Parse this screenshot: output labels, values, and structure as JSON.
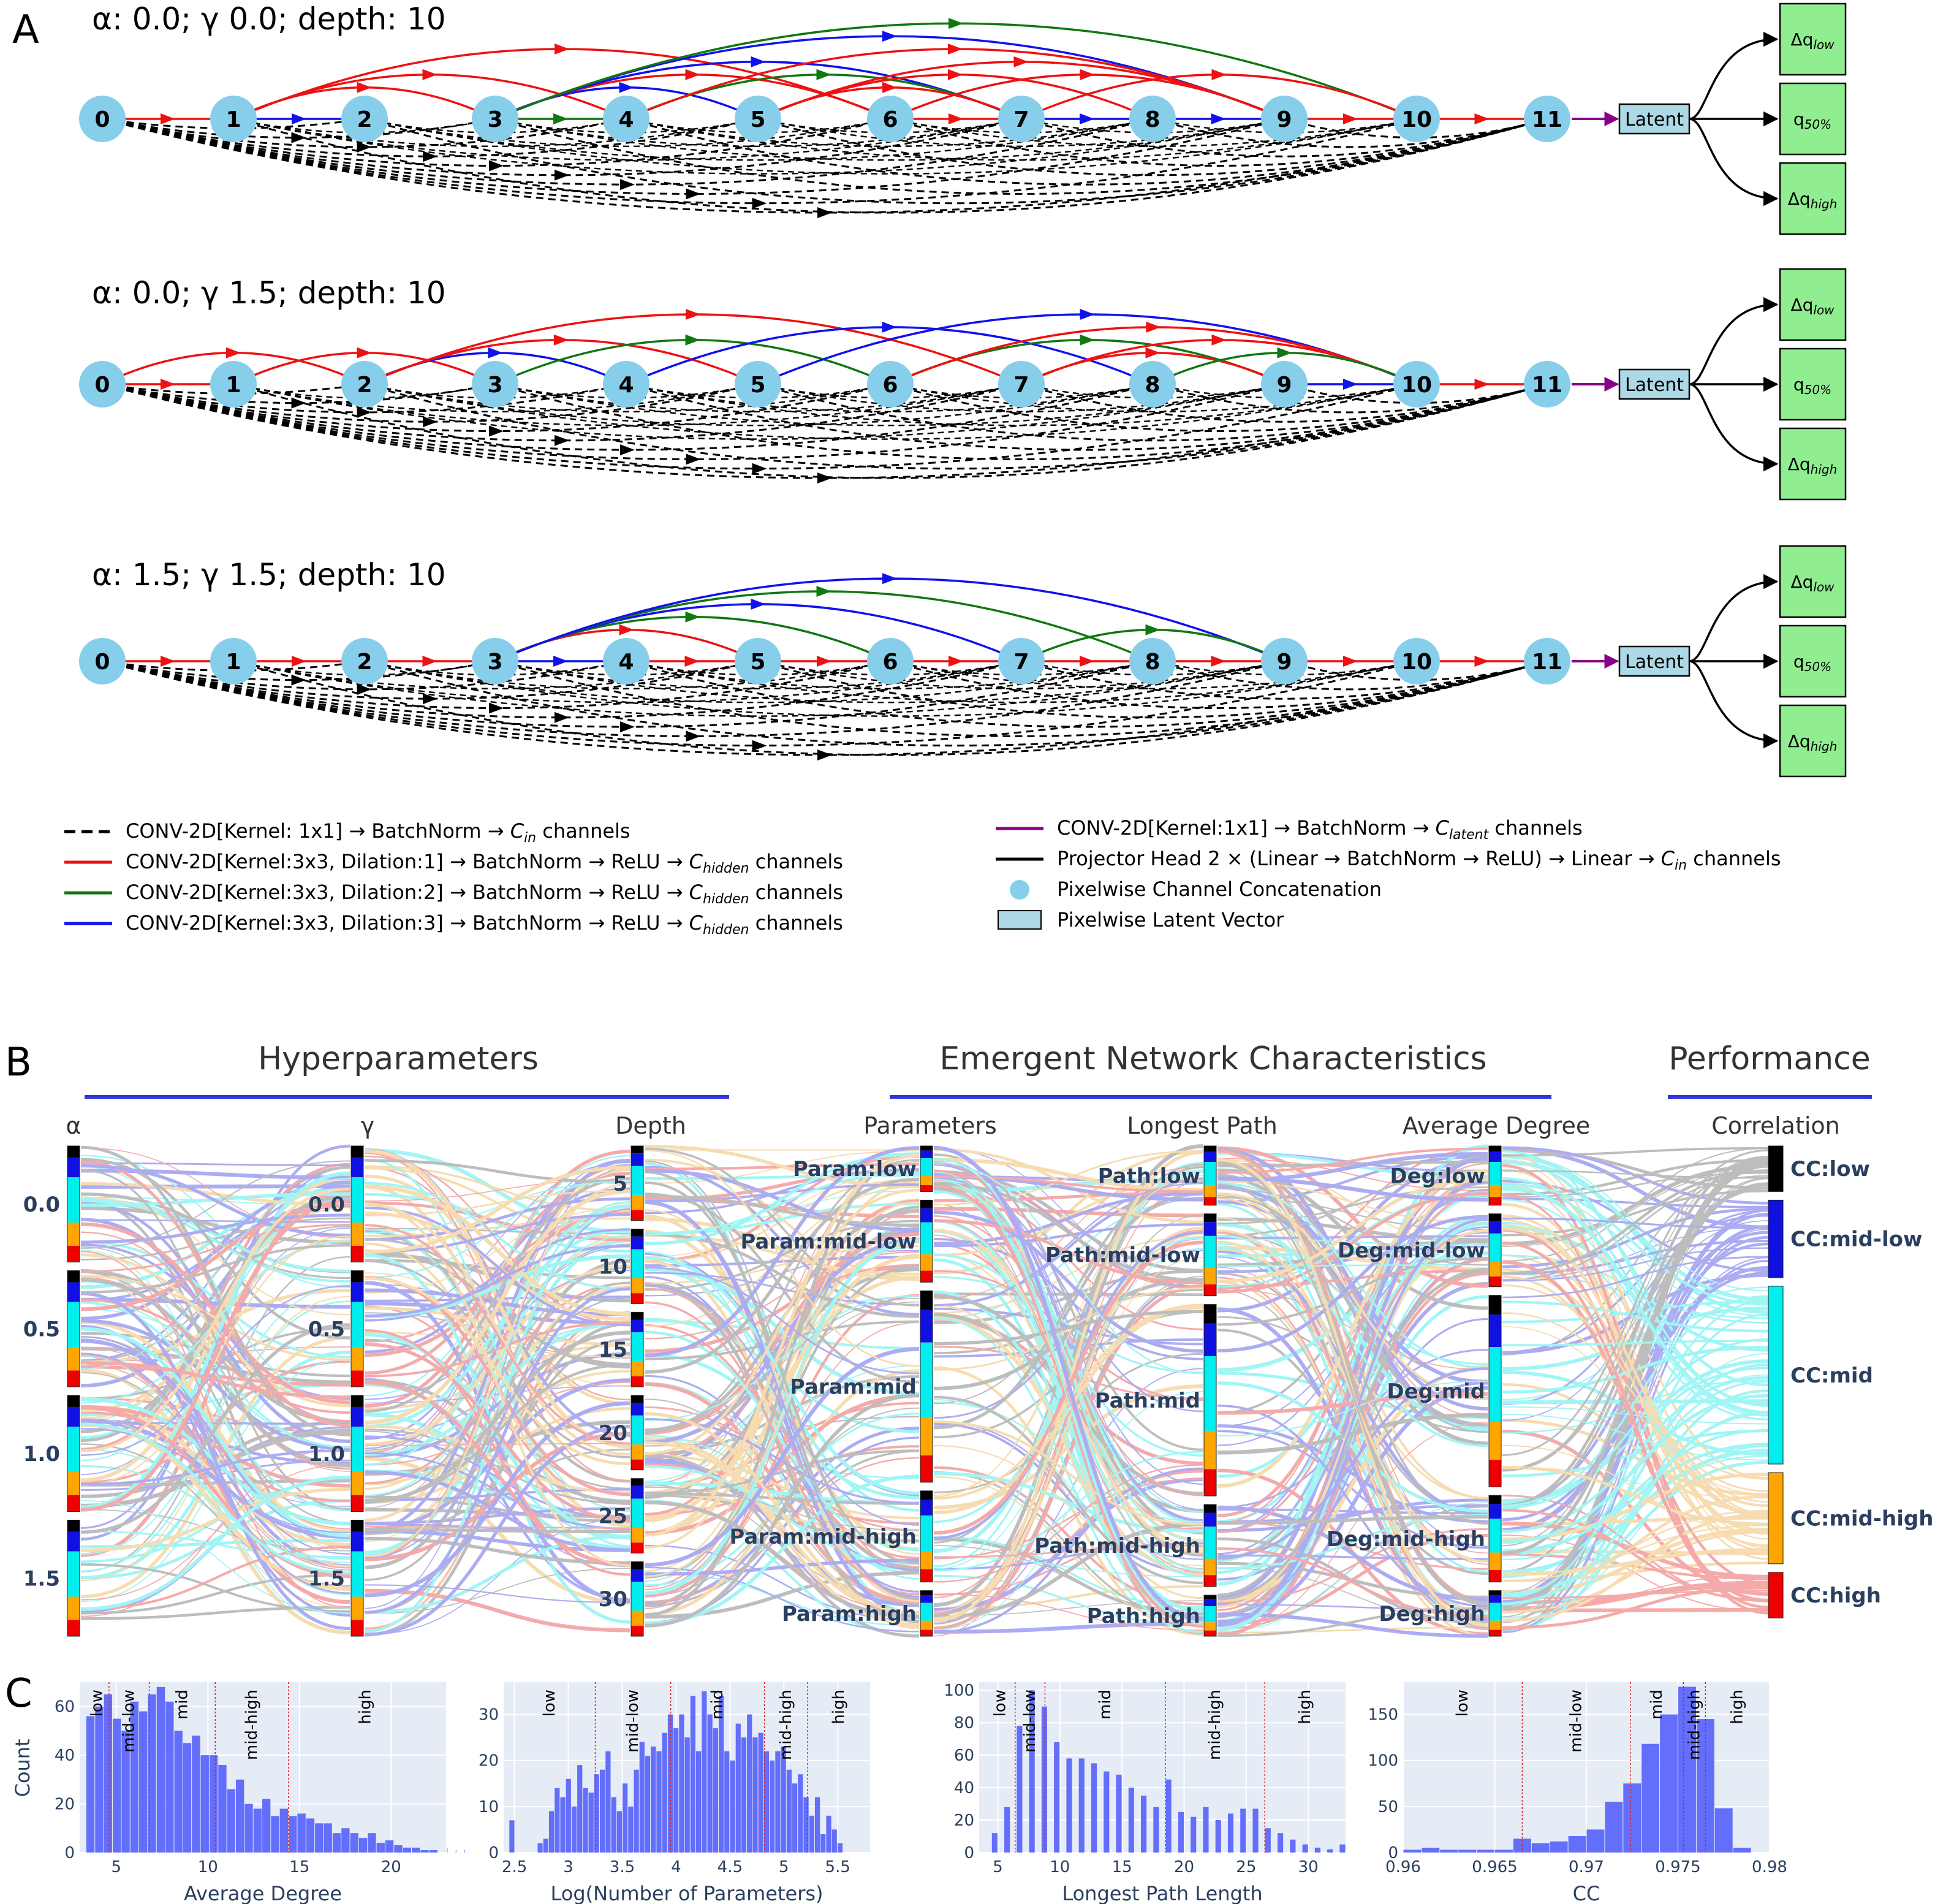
{
  "panels": {
    "a_letter": "A",
    "b_letter": "B",
    "c_letter": "C"
  },
  "colors": {
    "red": "#ee1111",
    "green": "#117711",
    "blue": "#1111ee",
    "purple": "#880088",
    "node": "#87ceeb",
    "latent": "#add8e6",
    "out": "#90ee90",
    "cat_low": "#000000",
    "cat_midlow": "#1010e0",
    "cat_mid": "#00eeee",
    "cat_midhigh": "#ffa500",
    "cat_high": "#ee0000",
    "hist_bar": "#636efa",
    "hist_bg": "#e5ecf6",
    "header_line": "#3333dd"
  },
  "panel_a": {
    "graphs": [
      {
        "title": "α: 0.0; γ 0.0; depth: 10",
        "nodes": [
          "0",
          "1",
          "2",
          "3",
          "4",
          "5",
          "6",
          "7",
          "8",
          "9",
          "10",
          "11"
        ],
        "edges": [
          [
            0,
            1,
            "red"
          ],
          [
            1,
            2,
            "blue"
          ],
          [
            1,
            3,
            "red"
          ],
          [
            1,
            4,
            "red"
          ],
          [
            1,
            6,
            "red"
          ],
          [
            3,
            4,
            "green"
          ],
          [
            3,
            5,
            "blue"
          ],
          [
            3,
            6,
            "red"
          ],
          [
            3,
            7,
            "blue"
          ],
          [
            3,
            9,
            "blue"
          ],
          [
            3,
            10,
            "green"
          ],
          [
            4,
            7,
            "green"
          ],
          [
            4,
            9,
            "red"
          ],
          [
            5,
            7,
            "red"
          ],
          [
            5,
            8,
            "red"
          ],
          [
            5,
            9,
            "red"
          ],
          [
            6,
            7,
            "red"
          ],
          [
            6,
            9,
            "red"
          ],
          [
            7,
            8,
            "blue"
          ],
          [
            7,
            10,
            "red"
          ],
          [
            8,
            9,
            "blue"
          ],
          [
            9,
            10,
            "red"
          ],
          [
            10,
            11,
            "red"
          ]
        ]
      },
      {
        "title": "α: 0.0; γ 1.5; depth: 10",
        "nodes": [
          "0",
          "1",
          "2",
          "3",
          "4",
          "5",
          "6",
          "7",
          "8",
          "9",
          "10",
          "11"
        ],
        "edges": [
          [
            0,
            1,
            "red"
          ],
          [
            0,
            2,
            "red"
          ],
          [
            1,
            3,
            "red"
          ],
          [
            2,
            4,
            "blue"
          ],
          [
            2,
            5,
            "red"
          ],
          [
            2,
            7,
            "red"
          ],
          [
            3,
            6,
            "green"
          ],
          [
            4,
            8,
            "blue"
          ],
          [
            5,
            10,
            "blue"
          ],
          [
            6,
            9,
            "green"
          ],
          [
            6,
            10,
            "red"
          ],
          [
            7,
            9,
            "red"
          ],
          [
            7,
            10,
            "red"
          ],
          [
            8,
            10,
            "green"
          ],
          [
            9,
            10,
            "blue"
          ],
          [
            10,
            11,
            "red"
          ]
        ]
      },
      {
        "title": "α: 1.5; γ 1.5; depth: 10",
        "nodes": [
          "0",
          "1",
          "2",
          "3",
          "4",
          "5",
          "6",
          "7",
          "8",
          "9",
          "10",
          "11"
        ],
        "edges": [
          [
            0,
            1,
            "red"
          ],
          [
            1,
            2,
            "red"
          ],
          [
            2,
            3,
            "red"
          ],
          [
            3,
            4,
            "blue"
          ],
          [
            3,
            5,
            "red"
          ],
          [
            3,
            6,
            "green"
          ],
          [
            3,
            7,
            "blue"
          ],
          [
            3,
            8,
            "green"
          ],
          [
            3,
            9,
            "blue"
          ],
          [
            4,
            5,
            "red"
          ],
          [
            5,
            6,
            "red"
          ],
          [
            6,
            7,
            "red"
          ],
          [
            7,
            8,
            "red"
          ],
          [
            7,
            9,
            "green"
          ],
          [
            8,
            9,
            "red"
          ],
          [
            9,
            10,
            "red"
          ],
          [
            10,
            11,
            "red"
          ]
        ]
      }
    ],
    "latent_label": "Latent",
    "out_labels": [
      {
        "pre": "Δq",
        "sub": "low"
      },
      {
        "pre": "q",
        "sub": "50%"
      },
      {
        "pre": "Δq",
        "sub": "high"
      }
    ]
  },
  "legend": {
    "left": [
      {
        "kind": "dashed",
        "color": "black",
        "pre": "CONV-2D[Kernel: 1x1]  →  BatchNorm  →    ",
        "C": "C",
        "sub": "in",
        "post": " channels"
      },
      {
        "kind": "line",
        "color": "red",
        "pre": "CONV-2D[Kernel:3x3, Dilation:1]  →  BatchNorm  →  ReLU  →  ",
        "C": "C",
        "sub": "hidden",
        "post": " channels"
      },
      {
        "kind": "line",
        "color": "green",
        "pre": "CONV-2D[Kernel:3x3, Dilation:2]  →  BatchNorm  →  ReLU  →  ",
        "C": "C",
        "sub": "hidden",
        "post": " channels"
      },
      {
        "kind": "line",
        "color": "blue",
        "pre": "CONV-2D[Kernel:3x3, Dilation:3]  →  BatchNorm  →  ReLU  →  ",
        "C": "C",
        "sub": "hidden",
        "post": " channels"
      }
    ],
    "right": [
      {
        "kind": "line",
        "color": "purple",
        "pre": "CONV-2D[Kernel:1x1]    →  BatchNorm  →  ",
        "C": "C",
        "sub": "latent",
        "post": " channels"
      },
      {
        "kind": "line",
        "color": "black",
        "pre": "Projector Head 2 × (Linear  →  BatchNorm  →  ReLU)  →  Linear →   ",
        "C": "C",
        "sub": "in",
        "post": " channels"
      },
      {
        "kind": "circle",
        "color": "node",
        "pre": "Pixelwise Channel Concatenation",
        "C": "",
        "sub": "",
        "post": ""
      },
      {
        "kind": "rect",
        "color": "latent",
        "pre": "Pixelwise Latent Vector",
        "C": "",
        "sub": "",
        "post": ""
      }
    ]
  },
  "panel_b": {
    "groups": [
      "Hyperparameters",
      "Emergent Network Characteristics",
      "Performance"
    ],
    "axes": [
      {
        "title": "α",
        "labels": [
          "0.0",
          "0.5",
          "1.0",
          "1.5"
        ]
      },
      {
        "title": "γ",
        "labels": [
          "0.0",
          "0.5",
          "1.0",
          "1.5"
        ]
      },
      {
        "title": "Depth",
        "labels": [
          "5",
          "10",
          "15",
          "20",
          "25",
          "30"
        ]
      },
      {
        "title": "Parameters",
        "labels": [
          "Param:low",
          "Param:mid-low",
          "Param:mid",
          "Param:mid-high",
          "Param:high"
        ]
      },
      {
        "title": "Longest Path",
        "labels": [
          "Path:low",
          "Path:mid-low",
          "Path:mid",
          "Path:mid-high",
          "Path:high"
        ]
      },
      {
        "title": "Average Degree",
        "labels": [
          "Deg:low",
          "Deg:mid-low",
          "Deg:mid",
          "Deg:mid-high",
          "Deg:high"
        ]
      },
      {
        "title": "Correlation",
        "labels": [
          "CC:low",
          "CC:mid-low",
          "CC:mid",
          "CC:mid-high",
          "CC:high"
        ]
      }
    ]
  },
  "panel_c": {
    "y_axis_title": "Count",
    "histograms": [
      {
        "xlabel": "Average Degree",
        "xmin": 3,
        "xmax": 23,
        "ymax": 70,
        "xticks": [
          5,
          10,
          15,
          20
        ],
        "yticks": [
          0,
          20,
          40,
          60
        ],
        "bin_start": 3.35,
        "bin_width": 0.48,
        "counts": [
          56,
          60,
          65,
          55,
          50,
          62,
          58,
          65,
          68,
          62,
          50,
          45,
          48,
          40,
          40,
          36,
          26,
          30,
          20,
          18,
          22,
          15,
          18,
          15,
          16,
          14,
          12,
          12,
          8,
          10,
          8,
          6,
          8,
          4,
          5,
          3,
          2,
          2,
          1,
          1,
          0,
          2,
          1,
          1
        ],
        "regions": [
          {
            "label": "low",
            "from": 3.3,
            "to": 4.6
          },
          {
            "label": "mid-low",
            "from": 4.6,
            "to": 6.8
          },
          {
            "label": "mid",
            "from": 6.8,
            "to": 10.4
          },
          {
            "label": "mid-high",
            "from": 10.4,
            "to": 14.4
          },
          {
            "label": "high",
            "from": 14.4,
            "to": 22.8
          }
        ],
        "cuts": [
          4.6,
          6.8,
          10.4,
          14.4
        ]
      },
      {
        "xlabel": "Log(Number of Parameters)",
        "xmin": 2.4,
        "xmax": 5.8,
        "ymax": 37,
        "xticks": [
          2.5,
          3,
          3.5,
          4,
          4.5,
          5,
          5.5
        ],
        "yticks": [
          0,
          10,
          20,
          30
        ],
        "bin_start": 2.45,
        "bin_width": 0.0525,
        "counts": [
          7,
          0,
          0,
          0,
          0,
          2,
          3,
          9,
          14,
          12,
          16,
          10,
          19,
          14,
          13,
          17,
          18,
          22,
          12,
          9,
          15,
          10,
          18,
          24,
          21,
          23,
          22,
          26,
          30,
          27,
          30,
          25,
          34,
          22,
          35,
          30,
          27,
          34,
          22,
          20,
          28,
          25,
          30,
          25,
          26,
          22,
          20,
          22,
          23,
          18,
          15,
          17,
          12,
          8,
          12,
          4,
          8,
          5,
          2
        ],
        "regions": [
          {
            "label": "low",
            "from": 2.4,
            "to": 3.25
          },
          {
            "label": "mid-low",
            "from": 3.25,
            "to": 3.95
          },
          {
            "label": "mid",
            "from": 3.95,
            "to": 4.82
          },
          {
            "label": "mid-high",
            "from": 4.82,
            "to": 5.22
          },
          {
            "label": "high",
            "from": 5.22,
            "to": 5.8
          }
        ],
        "cuts": [
          3.25,
          3.95,
          4.82,
          5.22
        ]
      },
      {
        "xlabel": "Longest Path Length",
        "xmin": 3.5,
        "xmax": 33,
        "ymax": 105,
        "xticks": [
          5,
          10,
          15,
          20,
          25,
          30
        ],
        "yticks": [
          0,
          20,
          40,
          60,
          80,
          100
        ],
        "bin_start": 4.5,
        "bin_width": 0.5,
        "bar_every": 1,
        "counts": [
          12,
          0,
          28,
          0,
          78,
          0,
          100,
          0,
          90,
          0,
          68,
          0,
          58,
          0,
          58,
          0,
          55,
          0,
          50,
          0,
          48,
          0,
          40,
          0,
          35,
          0,
          28,
          0,
          45,
          0,
          25,
          0,
          22,
          0,
          28,
          0,
          20,
          0,
          24,
          0,
          27,
          0,
          27,
          0,
          15,
          0,
          12,
          0,
          8,
          0,
          5,
          0,
          3,
          0,
          2,
          0,
          5
        ],
        "regions": [
          {
            "label": "low",
            "from": 4,
            "to": 6.4
          },
          {
            "label": "mid-low",
            "from": 6.4,
            "to": 8.8
          },
          {
            "label": "mid",
            "from": 8.8,
            "to": 18.5
          },
          {
            "label": "mid-high",
            "from": 18.5,
            "to": 26.5
          },
          {
            "label": "high",
            "from": 26.5,
            "to": 33
          }
        ],
        "cuts": [
          6.4,
          8.8,
          18.5,
          26.5
        ]
      },
      {
        "xlabel": "CC",
        "xmin": 0.96,
        "xmax": 0.98,
        "ymax": 185,
        "xticks": [
          0.96,
          0.965,
          0.97,
          0.975,
          0.98
        ],
        "yticks": [
          0,
          50,
          100,
          150
        ],
        "bin_start": 0.96,
        "bin_width": 0.001,
        "counts": [
          3,
          5,
          3,
          3,
          3,
          3,
          15,
          10,
          12,
          18,
          25,
          55,
          75,
          118,
          150,
          180,
          145,
          48,
          5,
          0
        ],
        "regions": [
          {
            "label": "low",
            "from": 0.96,
            "to": 0.9665
          },
          {
            "label": "mid-low",
            "from": 0.9665,
            "to": 0.9724
          },
          {
            "label": "mid",
            "from": 0.9724,
            "to": 0.9753
          },
          {
            "label": "mid-high",
            "from": 0.9753,
            "to": 0.9765
          },
          {
            "label": "high",
            "from": 0.9765,
            "to": 0.98
          }
        ],
        "cuts": [
          0.9665,
          0.9724,
          0.9753,
          0.9765
        ]
      }
    ]
  }
}
